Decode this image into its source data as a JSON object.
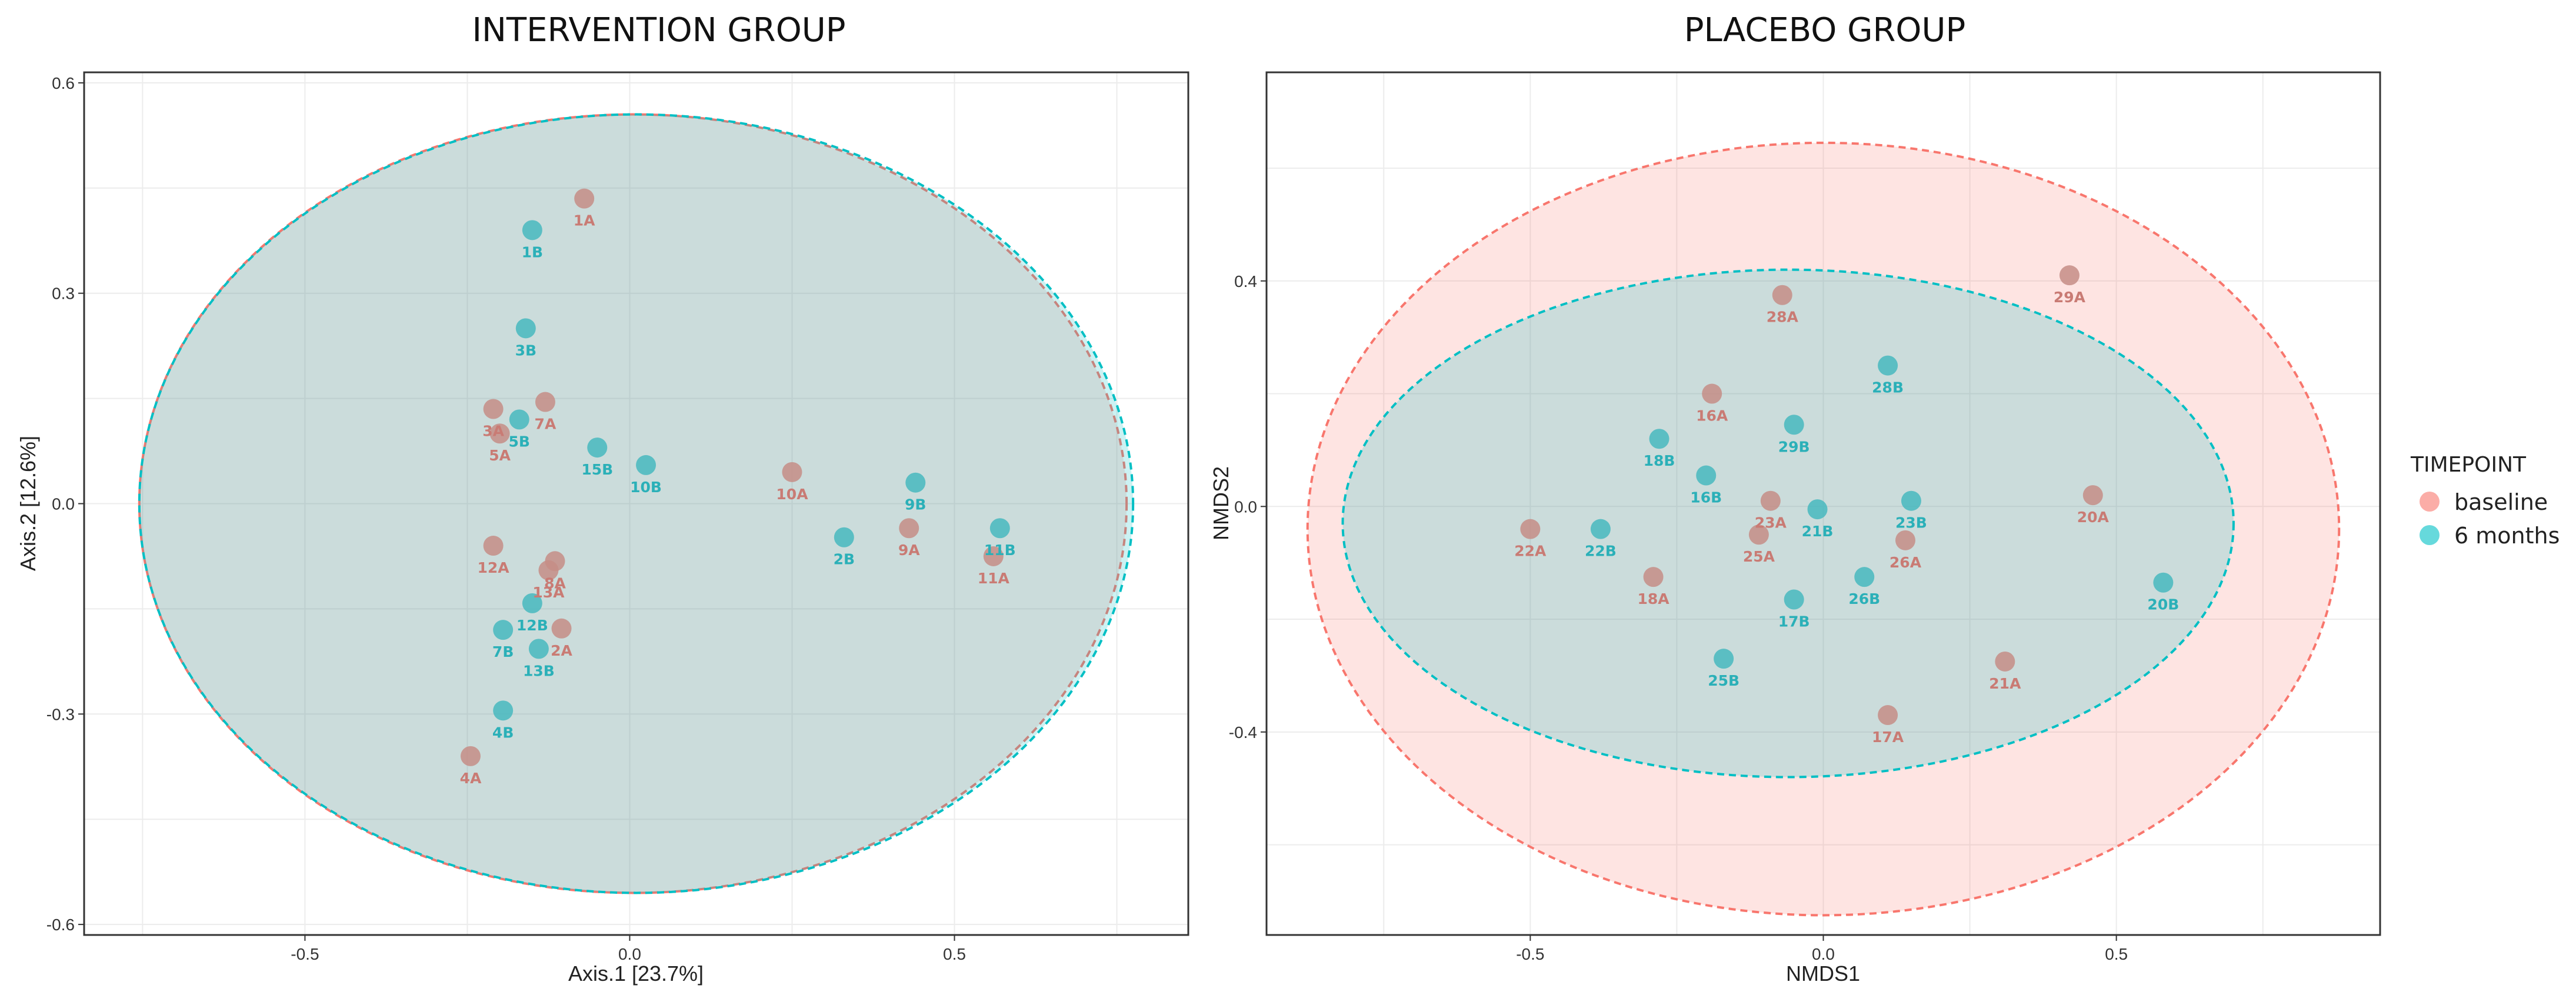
{
  "colors": {
    "baseline": "#f8766d",
    "six_months": "#00bfc4",
    "baseline_label": "#c97b74",
    "six_months_label": "#2bb0b8",
    "baseline_point": "#c58d86",
    "six_months_point": "#48b9be"
  },
  "legend": {
    "title": "TIMEPOINT",
    "items": [
      {
        "key": "baseline",
        "label": "baseline"
      },
      {
        "key": "six_months",
        "label": "6 months"
      }
    ]
  },
  "chart_data": [
    {
      "type": "scatter",
      "title": "INTERVENTION GROUP",
      "xlabel": "Axis.1   [23.7%]",
      "ylabel": "Axis.2   [12.6%]",
      "xlim": [
        -0.84,
        0.86
      ],
      "ylim": [
        -0.615,
        0.615
      ],
      "xticks": [
        -0.5,
        0,
        0.5
      ],
      "xtick_labels": [
        "-0.5",
        "0.0",
        "0.5"
      ],
      "yticks": [
        -0.6,
        -0.3,
        0,
        0.3,
        0.6
      ],
      "ytick_labels": [
        "-0.6",
        "-0.3",
        "0.0",
        "0.3",
        "0.6"
      ],
      "ellipses": [
        {
          "series": "baseline",
          "cx": 0.005,
          "cy": 0.0,
          "rx": 0.76,
          "ry": 0.555
        },
        {
          "series": "six_months",
          "cx": 0.01,
          "cy": 0.0,
          "rx": 0.765,
          "ry": 0.555
        }
      ],
      "series": [
        {
          "name": "baseline",
          "points": [
            {
              "label": "1A",
              "x": -0.07,
              "y": 0.435
            },
            {
              "label": "3A",
              "x": -0.21,
              "y": 0.135
            },
            {
              "label": "5A",
              "x": -0.2,
              "y": 0.1
            },
            {
              "label": "7A",
              "x": -0.13,
              "y": 0.145
            },
            {
              "label": "10A",
              "x": 0.25,
              "y": 0.045
            },
            {
              "label": "9A",
              "x": 0.43,
              "y": -0.035
            },
            {
              "label": "11A",
              "x": 0.56,
              "y": -0.075
            },
            {
              "label": "12A",
              "x": -0.21,
              "y": -0.06
            },
            {
              "label": "8A",
              "x": -0.115,
              "y": -0.082
            },
            {
              "label": "13A",
              "x": -0.125,
              "y": -0.095
            },
            {
              "label": "2A",
              "x": -0.105,
              "y": -0.178
            },
            {
              "label": "4A",
              "x": -0.245,
              "y": -0.36
            }
          ]
        },
        {
          "name": "six_months",
          "points": [
            {
              "label": "1B",
              "x": -0.15,
              "y": 0.39
            },
            {
              "label": "3B",
              "x": -0.16,
              "y": 0.25
            },
            {
              "label": "5B",
              "x": -0.17,
              "y": 0.12
            },
            {
              "label": "15B",
              "x": -0.05,
              "y": 0.08
            },
            {
              "label": "10B",
              "x": 0.025,
              "y": 0.055
            },
            {
              "label": "9B",
              "x": 0.44,
              "y": 0.03
            },
            {
              "label": "11B",
              "x": 0.57,
              "y": -0.035
            },
            {
              "label": "2B",
              "x": 0.33,
              "y": -0.048
            },
            {
              "label": "12B",
              "x": -0.15,
              "y": -0.142
            },
            {
              "label": "7B",
              "x": -0.195,
              "y": -0.18
            },
            {
              "label": "13B",
              "x": -0.14,
              "y": -0.207
            },
            {
              "label": "4B",
              "x": -0.195,
              "y": -0.295
            }
          ]
        }
      ]
    },
    {
      "type": "scatter",
      "title": "PLACEBO GROUP",
      "xlabel": "NMDS1",
      "ylabel": "NMDS2",
      "xlim": [
        -0.95,
        0.95
      ],
      "ylim": [
        -0.76,
        0.77
      ],
      "xticks": [
        -0.5,
        0,
        0.5
      ],
      "xtick_labels": [
        "-0.5",
        "0.0",
        "0.5"
      ],
      "yticks": [
        -0.4,
        0,
        0.4
      ],
      "ytick_labels": [
        "-0.4",
        "0.0",
        "0.4"
      ],
      "ellipses": [
        {
          "series": "baseline",
          "cx": 0.0,
          "cy": -0.04,
          "rx": 0.88,
          "ry": 0.685
        },
        {
          "series": "six_months",
          "cx": -0.06,
          "cy": -0.03,
          "rx": 0.76,
          "ry": 0.45
        }
      ],
      "series": [
        {
          "name": "baseline",
          "points": [
            {
              "label": "29A",
              "x": 0.42,
              "y": 0.41
            },
            {
              "label": "28A",
              "x": -0.07,
              "y": 0.375
            },
            {
              "label": "16A",
              "x": -0.19,
              "y": 0.2
            },
            {
              "label": "23A",
              "x": -0.09,
              "y": 0.01
            },
            {
              "label": "25A",
              "x": -0.11,
              "y": -0.05
            },
            {
              "label": "26A",
              "x": 0.14,
              "y": -0.06
            },
            {
              "label": "22A",
              "x": -0.5,
              "y": -0.04
            },
            {
              "label": "18A",
              "x": -0.29,
              "y": -0.125
            },
            {
              "label": "20A",
              "x": 0.46,
              "y": 0.02
            },
            {
              "label": "21A",
              "x": 0.31,
              "y": -0.275
            },
            {
              "label": "17A",
              "x": 0.11,
              "y": -0.37
            }
          ]
        },
        {
          "name": "six_months",
          "points": [
            {
              "label": "28B",
              "x": 0.11,
              "y": 0.25
            },
            {
              "label": "29B",
              "x": -0.05,
              "y": 0.145
            },
            {
              "label": "18B",
              "x": -0.28,
              "y": 0.12
            },
            {
              "label": "16B",
              "x": -0.2,
              "y": 0.055
            },
            {
              "label": "21B",
              "x": -0.01,
              "y": -0.005
            },
            {
              "label": "23B",
              "x": 0.15,
              "y": 0.01
            },
            {
              "label": "22B",
              "x": -0.38,
              "y": -0.04
            },
            {
              "label": "26B",
              "x": 0.07,
              "y": -0.125
            },
            {
              "label": "17B",
              "x": -0.05,
              "y": -0.165
            },
            {
              "label": "20B",
              "x": 0.58,
              "y": -0.135
            },
            {
              "label": "25B",
              "x": -0.17,
              "y": -0.27
            }
          ]
        }
      ]
    }
  ]
}
